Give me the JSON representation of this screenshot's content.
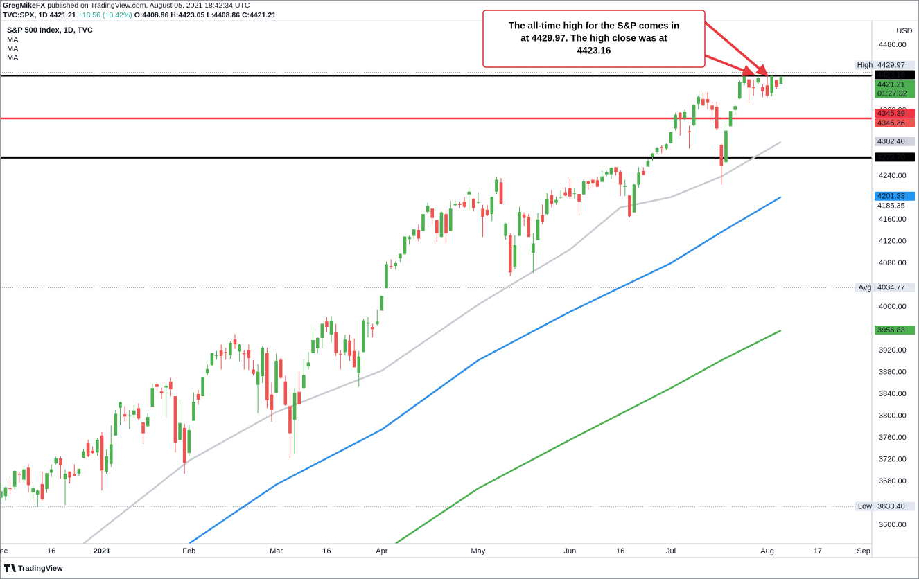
{
  "chart_data": {
    "type": "candlestick",
    "header": {
      "author": "GregMikeFX",
      "published": "published on TradingView.com, August 05, 2021 18:42:34 UTC",
      "symbol": "TVC:SPX, 1D",
      "last": "4421.21",
      "change": "+18.56 (+0.42%)",
      "ohlc": "O:4408.86 H:4423.05 L:4408.86 C:4421.21"
    },
    "title": "S&P 500 Index, 1D, TVC",
    "currency": "USD",
    "footer": "TradingView",
    "annotation": [
      "The all-time high for the S&P comes in",
      "at 4429.97. The high close was at",
      "4423.16"
    ],
    "up_color": "#4caf50",
    "down_color": "#ef5350",
    "xlim": [
      -0.2,
      189.8
    ],
    "ylim": [
      3565.7,
      4524.4
    ],
    "xticks": [
      {
        "value": 0,
        "label": "Dec"
      },
      {
        "value": 11,
        "label": "16"
      },
      {
        "value": 22,
        "label": "2021",
        "emphasis": true
      },
      {
        "value": 41,
        "label": "Feb"
      },
      {
        "value": 60,
        "label": "Mar"
      },
      {
        "value": 71,
        "label": "16"
      },
      {
        "value": 83,
        "label": "Apr"
      },
      {
        "value": 104,
        "label": "May"
      },
      {
        "value": 124,
        "label": "Jun"
      },
      {
        "value": 135,
        "label": "16"
      },
      {
        "value": 146,
        "label": "Jul"
      },
      {
        "value": 167,
        "label": "Aug"
      },
      {
        "value": 178,
        "label": "17"
      },
      {
        "value": 188,
        "label": "Sep"
      }
    ],
    "yticks": [
      {
        "value": 4480,
        "label": "4480.00"
      },
      {
        "value": 4360,
        "label": "4360.00"
      },
      {
        "value": 4240,
        "label": "4240.00"
      },
      {
        "value": 4160,
        "label": "4160.00"
      },
      {
        "value": 4120,
        "label": "4120.00"
      },
      {
        "value": 4080,
        "label": "4080.00"
      },
      {
        "value": 4000,
        "label": "4000.00"
      },
      {
        "value": 3920,
        "label": "3920.00"
      },
      {
        "value": 3880,
        "label": "3880.00"
      },
      {
        "value": 3840,
        "label": "3840.00"
      },
      {
        "value": 3800,
        "label": "3800.00"
      },
      {
        "value": 3760,
        "label": "3760.00"
      },
      {
        "value": 3720,
        "label": "3720.00"
      },
      {
        "value": 3680,
        "label": "3680.00"
      },
      {
        "value": 3600,
        "label": "3600.00"
      }
    ],
    "x": [
      0,
      1,
      2,
      3,
      4,
      5,
      6,
      7,
      8,
      9,
      10,
      11,
      12,
      13,
      14,
      15,
      16,
      17,
      18,
      19,
      20,
      21,
      22,
      23,
      24,
      25,
      26,
      27,
      28,
      29,
      30,
      31,
      32,
      33,
      34,
      35,
      36,
      37,
      38,
      39,
      40,
      41,
      42,
      43,
      44,
      45,
      46,
      47,
      48,
      49,
      50,
      51,
      52,
      53,
      54,
      55,
      56,
      57,
      58,
      59,
      60,
      61,
      62,
      63,
      64,
      65,
      66,
      67,
      68,
      69,
      70,
      71,
      72,
      73,
      74,
      75,
      76,
      77,
      78,
      79,
      80,
      81,
      82,
      83,
      84,
      85,
      86,
      87,
      88,
      89,
      90,
      91,
      92,
      93,
      94,
      95,
      96,
      97,
      98,
      99,
      100,
      101,
      102,
      103,
      104,
      105,
      106,
      107,
      108,
      109,
      110,
      111,
      112,
      113,
      114,
      115,
      116,
      117,
      118,
      119,
      120,
      121,
      122,
      123,
      124,
      125,
      126,
      127,
      128,
      129,
      130,
      131,
      132,
      133,
      134,
      135,
      136,
      137,
      138,
      139,
      140,
      141,
      142,
      143,
      144,
      145,
      146,
      147,
      148,
      149,
      150,
      151,
      152,
      153,
      154,
      155,
      156,
      157,
      158,
      159,
      160,
      161,
      162,
      163,
      164,
      165,
      166,
      167,
      168,
      169,
      170
    ],
    "ohlc": [
      [
        3650,
        3678,
        3645,
        3662
      ],
      [
        3653,
        3670,
        3645,
        3669
      ],
      [
        3668,
        3682,
        3657,
        3666
      ],
      [
        3670,
        3700,
        3665,
        3699
      ],
      [
        3694,
        3697,
        3678,
        3692
      ],
      [
        3683,
        3708,
        3678,
        3702
      ],
      [
        3705,
        3712,
        3660,
        3673
      ],
      [
        3660,
        3672,
        3645,
        3668
      ],
      [
        3656,
        3665,
        3633,
        3663
      ],
      [
        3675,
        3698,
        3645,
        3647
      ],
      [
        3666,
        3695,
        3659,
        3695
      ],
      [
        3696,
        3711,
        3688,
        3702
      ],
      [
        3713,
        3725,
        3710,
        3722
      ],
      [
        3722,
        3726,
        3685,
        3709
      ],
      [
        3684,
        3702,
        3636,
        3694
      ],
      [
        3698,
        3698,
        3676,
        3687
      ],
      [
        3693,
        3711,
        3689,
        3690
      ],
      [
        3694,
        3703,
        3690,
        3703
      ],
      [
        3723,
        3740,
        3723,
        3735
      ],
      [
        3750,
        3756,
        3724,
        3727
      ],
      [
        3736,
        3744,
        3730,
        3732
      ],
      [
        3733,
        3760,
        3727,
        3756
      ],
      [
        3764,
        3770,
        3663,
        3700
      ],
      [
        3698,
        3738,
        3694,
        3726
      ],
      [
        3712,
        3783,
        3706,
        3748
      ],
      [
        3764,
        3811,
        3764,
        3804
      ],
      [
        3815,
        3826,
        3783,
        3825
      ],
      [
        3803,
        3818,
        3790,
        3799
      ],
      [
        3801,
        3811,
        3776,
        3801
      ],
      [
        3802,
        3820,
        3796,
        3810
      ],
      [
        3814,
        3823,
        3792,
        3795
      ],
      [
        3788,
        3788,
        3749,
        3768
      ],
      [
        3781,
        3805,
        3780,
        3798
      ],
      [
        3817,
        3860,
        3817,
        3851
      ],
      [
        3858,
        3861,
        3846,
        3853
      ],
      [
        3845,
        3852,
        3831,
        3841
      ],
      [
        3852,
        3860,
        3797,
        3855
      ],
      [
        3863,
        3870,
        3836,
        3849
      ],
      [
        3836,
        3836,
        3733,
        3751
      ],
      [
        3756,
        3830,
        3756,
        3787
      ],
      [
        3778,
        3785,
        3694,
        3714
      ],
      [
        3732,
        3784,
        3726,
        3774
      ],
      [
        3791,
        3843,
        3791,
        3826
      ],
      [
        3840,
        3848,
        3820,
        3830
      ],
      [
        3836,
        3872,
        3836,
        3871
      ],
      [
        3878,
        3894,
        3874,
        3886
      ],
      [
        3893,
        3916,
        3892,
        3915
      ],
      [
        3910,
        3919,
        3903,
        3911
      ],
      [
        3920,
        3931,
        3885,
        3910
      ],
      [
        3917,
        3925,
        3903,
        3916
      ],
      [
        3911,
        3937,
        3905,
        3934
      ],
      [
        3940,
        3950,
        3923,
        3932
      ],
      [
        3918,
        3933,
        3900,
        3931
      ],
      [
        3915,
        3921,
        3885,
        3913
      ],
      [
        3921,
        3931,
        3884,
        3906
      ],
      [
        3885,
        3902,
        3874,
        3877
      ],
      [
        3857,
        3895,
        3805,
        3881
      ],
      [
        3873,
        3928,
        3860,
        3925
      ],
      [
        3915,
        3925,
        3814,
        3829
      ],
      [
        3839,
        3861,
        3789,
        3811
      ],
      [
        3842,
        3914,
        3842,
        3901
      ],
      [
        3903,
        3906,
        3868,
        3870
      ],
      [
        3863,
        3874,
        3818,
        3820
      ],
      [
        3818,
        3844,
        3723,
        3768
      ],
      [
        3793,
        3851,
        3730,
        3842
      ],
      [
        3844,
        3881,
        3819,
        3821
      ],
      [
        3851,
        3903,
        3851,
        3875
      ],
      [
        3891,
        3917,
        3885,
        3898
      ],
      [
        3915,
        3960,
        3915,
        3939
      ],
      [
        3924,
        3944,
        3915,
        3943
      ],
      [
        3943,
        3970,
        3924,
        3969
      ],
      [
        3973,
        3981,
        3953,
        3963
      ],
      [
        3949,
        3983,
        3935,
        3974
      ],
      [
        3953,
        3969,
        3910,
        3915
      ],
      [
        3914,
        3921,
        3885,
        3913
      ],
      [
        3917,
        3949,
        3911,
        3940
      ],
      [
        3938,
        3949,
        3901,
        3910
      ],
      [
        3919,
        3942,
        3889,
        3889
      ],
      [
        3879,
        3919,
        3853,
        3909
      ],
      [
        3917,
        3978,
        3917,
        3975
      ],
      [
        3969,
        3981,
        3944,
        3971
      ],
      [
        3963,
        3969,
        3944,
        3959
      ],
      [
        3968,
        3995,
        3966,
        3973
      ],
      [
        3993,
        4020,
        3993,
        4020
      ],
      [
        4034,
        4083,
        4034,
        4078
      ],
      [
        4075,
        4087,
        4069,
        4074
      ],
      [
        4075,
        4083,
        4068,
        4080
      ],
      [
        4089,
        4098,
        4082,
        4097
      ],
      [
        4097,
        4129,
        4095,
        4129
      ],
      [
        4124,
        4131,
        4114,
        4128
      ],
      [
        4130,
        4143,
        4125,
        4142
      ],
      [
        4141,
        4151,
        4120,
        4125
      ],
      [
        4139,
        4173,
        4139,
        4170
      ],
      [
        4174,
        4191,
        4171,
        4185
      ],
      [
        4180,
        4180,
        4151,
        4163
      ],
      [
        4159,
        4160,
        4119,
        4135
      ],
      [
        4128,
        4175,
        4126,
        4173
      ],
      [
        4170,
        4179,
        4116,
        4135
      ],
      [
        4139,
        4194,
        4139,
        4180
      ],
      [
        4186,
        4194,
        4184,
        4188
      ],
      [
        4188,
        4193,
        4181,
        4187
      ],
      [
        4193,
        4201,
        4181,
        4183
      ],
      [
        4206,
        4218,
        4177,
        4211
      ],
      [
        4198,
        4199,
        4175,
        4181
      ],
      [
        4191,
        4210,
        4188,
        4192
      ],
      [
        4180,
        4187,
        4128,
        4165
      ],
      [
        4178,
        4187,
        4166,
        4168
      ],
      [
        4170,
        4202,
        4157,
        4202
      ],
      [
        4211,
        4238,
        4207,
        4233
      ],
      [
        4228,
        4236,
        4188,
        4189
      ],
      [
        4130,
        4154,
        4123,
        4152
      ],
      [
        4131,
        4135,
        4056,
        4063
      ],
      [
        4074,
        4131,
        4069,
        4113
      ],
      [
        4130,
        4183,
        4130,
        4174
      ],
      [
        4169,
        4173,
        4148,
        4163
      ],
      [
        4165,
        4170,
        4128,
        4128
      ],
      [
        4099,
        4135,
        4062,
        4116
      ],
      [
        4122,
        4172,
        4122,
        4160
      ],
      [
        4168,
        4188,
        4151,
        4156
      ],
      [
        4170,
        4209,
        4168,
        4197
      ],
      [
        4205,
        4214,
        4182,
        4189
      ],
      [
        4191,
        4202,
        4187,
        4196
      ],
      [
        4201,
        4213,
        4198,
        4201
      ],
      [
        4210,
        4219,
        4203,
        4204
      ],
      [
        4217,
        4235,
        4197,
        4202
      ],
      [
        4207,
        4217,
        4198,
        4208
      ],
      [
        4207,
        4207,
        4168,
        4193
      ],
      [
        4206,
        4233,
        4206,
        4230
      ],
      [
        4230,
        4232,
        4215,
        4226
      ],
      [
        4233,
        4236,
        4218,
        4227
      ],
      [
        4232,
        4238,
        4220,
        4220
      ],
      [
        4229,
        4249,
        4229,
        4239
      ],
      [
        4243,
        4249,
        4240,
        4247
      ],
      [
        4243,
        4256,
        4234,
        4255
      ],
      [
        4256,
        4256,
        4241,
        4247
      ],
      [
        4248,
        4251,
        4203,
        4224
      ],
      [
        4220,
        4233,
        4203,
        4222
      ],
      [
        4204,
        4204,
        4164,
        4166
      ],
      [
        4173,
        4226,
        4173,
        4224
      ],
      [
        4224,
        4256,
        4218,
        4246
      ],
      [
        4249,
        4256,
        4241,
        4242
      ],
      [
        4257,
        4271,
        4257,
        4267
      ],
      [
        4275,
        4282,
        4267,
        4281
      ],
      [
        4284,
        4293,
        4281,
        4291
      ],
      [
        4293,
        4296,
        4281,
        4291
      ],
      [
        4290,
        4300,
        4287,
        4298
      ],
      [
        4300,
        4321,
        4300,
        4320
      ],
      [
        4327,
        4355,
        4323,
        4352
      ],
      [
        4356,
        4357,
        4314,
        4344
      ],
      [
        4346,
        4361,
        4342,
        4358
      ],
      [
        4322,
        4332,
        4290,
        4320
      ],
      [
        4333,
        4372,
        4331,
        4370
      ],
      [
        4372,
        4387,
        4362,
        4385
      ],
      [
        4381,
        4393,
        4369,
        4369
      ],
      [
        4381,
        4393,
        4362,
        4375
      ],
      [
        4369,
        4376,
        4337,
        4361
      ],
      [
        4367,
        4376,
        4324,
        4327
      ],
      [
        4297,
        4299,
        4224,
        4258
      ],
      [
        4265,
        4337,
        4262,
        4323
      ],
      [
        4331,
        4359,
        4331,
        4359
      ],
      [
        4361,
        4370,
        4352,
        4368
      ],
      [
        4382,
        4415,
        4381,
        4412
      ],
      [
        4410,
        4423,
        4406,
        4422
      ],
      [
        4417,
        4417,
        4373,
        4402
      ],
      [
        4403,
        4416,
        4387,
        4401
      ],
      [
        4411,
        4429.97,
        4408,
        4419
      ],
      [
        4403,
        4408,
        4384,
        4395
      ],
      [
        4406,
        4422,
        4384,
        4387
      ],
      [
        4392,
        4424,
        4386,
        4423.16
      ],
      [
        4416,
        4416,
        4400,
        4403
      ],
      [
        4408.86,
        4423.05,
        4408.86,
        4421.21
      ]
    ],
    "series": [
      {
        "name": "MA",
        "color": "#c9cbd3",
        "x": [
          18,
          41,
          60,
          83,
          104,
          124,
          135,
          146,
          157,
          170
        ],
        "values": [
          3566,
          3718,
          3807,
          3883,
          4004,
          4105,
          4182,
          4201,
          4239,
          4302.4
        ]
      },
      {
        "name": "MA",
        "color": "#2f8fe8",
        "x": [
          41,
          60,
          83,
          104,
          124,
          146,
          157,
          170
        ],
        "values": [
          3566,
          3674,
          3775,
          3902,
          3991,
          4080,
          4137,
          4201.33
        ]
      },
      {
        "name": "MA",
        "color": "#4caf50",
        "x": [
          86,
          104,
          124,
          146,
          157,
          170
        ],
        "values": [
          3566,
          3667,
          3756,
          3851,
          3902,
          3956.83
        ]
      }
    ],
    "hlines": [
      {
        "value": 4423.16,
        "color": "#000000",
        "width": 1.5
      },
      {
        "value": 4345.39,
        "color": "#f23645",
        "width": 2.5
      },
      {
        "value": 4273.7,
        "color": "#000000",
        "width": 3
      }
    ],
    "price_labels": [
      {
        "value": 4429.97,
        "label": "4429.97",
        "tag": "High",
        "bg": "#e3e8f0",
        "fg": "#50535e",
        "line": "dotted"
      },
      {
        "value": 4423.16,
        "label": "4423.16",
        "bg": "#000000",
        "fg": "#ffffff"
      },
      {
        "value": 4421.21,
        "label": "4421.21",
        "countdown": "01:27:32",
        "bg": "#4caf50",
        "fg": "#ffffff"
      },
      {
        "value": 4345.39,
        "label": "4345.39",
        "bg": "#f23645",
        "fg": "#ffffff"
      },
      {
        "value": 4345.36,
        "label": "4345.36",
        "bg": "#ef5350",
        "fg": "#ffffff"
      },
      {
        "value": 4302.4,
        "label": "4302.40",
        "bg": "#d1d4dc",
        "fg": "#131722"
      },
      {
        "value": 4273.7,
        "label": "4273.70",
        "bg": "#000000",
        "fg": "#ffffff"
      },
      {
        "value": 4201.33,
        "label": "4201.33",
        "bg": "#2196f3",
        "fg": "#ffffff"
      },
      {
        "value": 4185.35,
        "label": "4185.35",
        "bg": "#ffffff",
        "fg": "#131722"
      },
      {
        "value": 4034.77,
        "label": "4034.77",
        "tag": "Avg",
        "bg": "#e3e8f0",
        "fg": "#50535e",
        "line": "dotted"
      },
      {
        "value": 3956.83,
        "label": "3956.83",
        "bg": "#4caf50",
        "fg": "#ffffff"
      },
      {
        "value": 3633.4,
        "label": "3633.40",
        "tag": "Low",
        "bg": "#e3e8f0",
        "fg": "#50535e",
        "line": "dotted"
      }
    ]
  }
}
